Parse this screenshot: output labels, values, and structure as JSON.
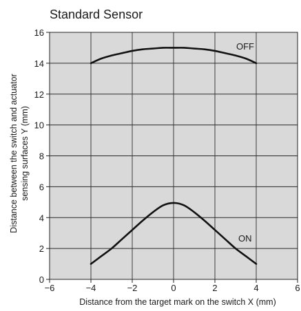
{
  "chart_data": {
    "type": "line",
    "title": "Standard Sensor",
    "xlabel": "Distance from the target mark on the switch X (mm)",
    "ylabel_lines": [
      "Distance between the switch and actuator",
      "sensing surfaces Y (mm)"
    ],
    "xlim": [
      -6,
      6
    ],
    "ylim": [
      0,
      16
    ],
    "x_ticks": [
      -6,
      -4,
      -2,
      0,
      2,
      4,
      6
    ],
    "x_tick_labels": [
      "−6",
      "−4",
      "−2",
      "0",
      "2",
      "4",
      "6"
    ],
    "y_ticks": [
      0,
      2,
      4,
      6,
      8,
      10,
      12,
      14,
      16
    ],
    "y_tick_labels": [
      "0",
      "2",
      "4",
      "6",
      "8",
      "10",
      "12",
      "14",
      "16"
    ],
    "grid": true,
    "plot_bg": "#d9d9d9",
    "line_color": "#111111",
    "series": [
      {
        "name": "OFF",
        "x": [
          -4,
          -3.5,
          -3,
          -2.5,
          -2,
          -1.5,
          -1,
          -0.5,
          0,
          0.5,
          1,
          1.5,
          2,
          2.5,
          3,
          3.5,
          4
        ],
        "y": [
          14.0,
          14.3,
          14.5,
          14.65,
          14.8,
          14.9,
          14.95,
          15.0,
          15.0,
          15.0,
          14.95,
          14.9,
          14.8,
          14.65,
          14.5,
          14.3,
          14.0
        ]
      },
      {
        "name": "ON",
        "x": [
          -4,
          -3.5,
          -3,
          -2.5,
          -2,
          -1.5,
          -1,
          -0.5,
          0,
          0.5,
          1,
          1.5,
          2,
          2.5,
          3,
          3.5,
          4
        ],
        "y": [
          1.0,
          1.5,
          2.0,
          2.6,
          3.2,
          3.8,
          4.35,
          4.8,
          4.95,
          4.8,
          4.35,
          3.8,
          3.2,
          2.6,
          2.0,
          1.5,
          1.0
        ]
      }
    ]
  }
}
